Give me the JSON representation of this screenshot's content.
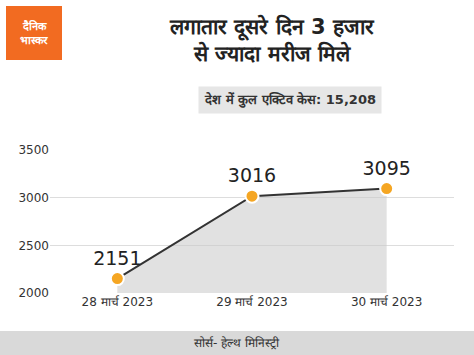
{
  "chart_data": {
    "type": "line",
    "title": "लगातार दूसरे दिन 3 हजार से ज्यादा मरीज मिले",
    "subtitle": "देश में कुल एक्टिव केस: 15,208",
    "annotations": [
      "दैनिक भास्कर",
      "सोर्स- हेल्थ मिनिस्ट्री"
    ],
    "categories": [
      "28 मार्च 2023",
      "29 मार्च 2023",
      "30 मार्च 2023"
    ],
    "values": [
      2151,
      3016,
      3095
    ],
    "color": "#f5a623",
    "ylim": [
      2000,
      3500
    ],
    "yticks": [
      2000,
      2500,
      3000,
      3500
    ],
    "grid": true,
    "data_labels": true
  }
}
